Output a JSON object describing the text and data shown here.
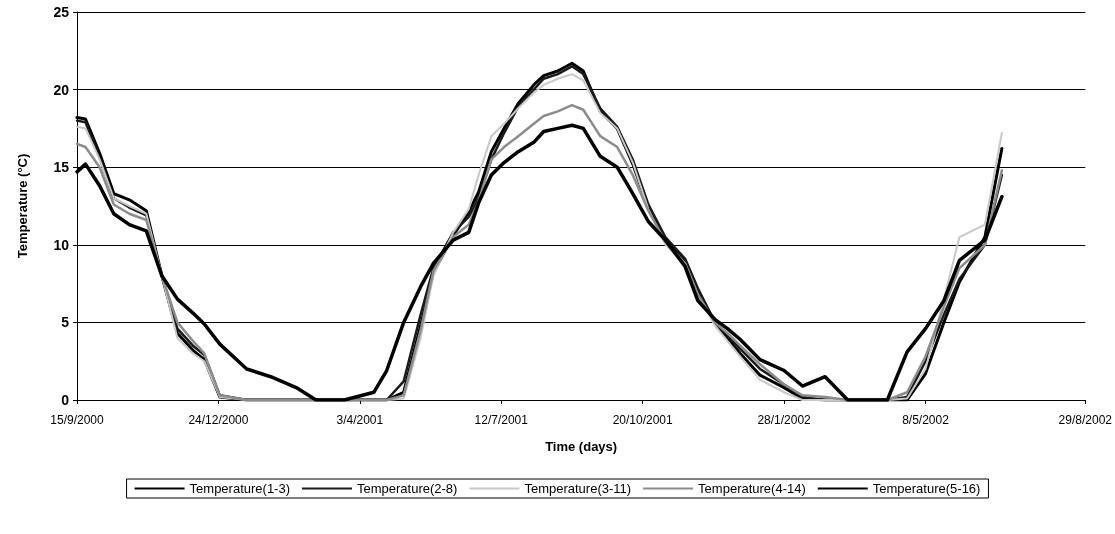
{
  "chart_data": {
    "type": "line",
    "xlabel": "Time (days)",
    "ylabel": "Temperature (°C)",
    "x": [
      "2000-09-15",
      "2000-09-21",
      "2000-10-01",
      "2000-10-11",
      "2000-10-22",
      "2000-11-03",
      "2000-11-14",
      "2000-11-25",
      "2000-12-06",
      "2000-12-14",
      "2000-12-25",
      "2001-01-13",
      "2001-01-30",
      "2001-02-17",
      "2001-03-03",
      "2001-03-23",
      "2001-04-13",
      "2001-04-22",
      "2001-05-04",
      "2001-05-16",
      "2001-05-25",
      "2001-06-08",
      "2001-06-19",
      "2001-06-26",
      "2001-07-05",
      "2001-07-14",
      "2001-07-24",
      "2001-08-04",
      "2001-08-11",
      "2001-08-21",
      "2001-08-31",
      "2001-09-08",
      "2001-09-20",
      "2001-10-02",
      "2001-10-13",
      "2001-10-24",
      "2001-11-05",
      "2001-11-19",
      "2001-11-28",
      "2001-12-10",
      "2001-12-19",
      "2001-12-28",
      "2002-01-11",
      "2002-01-28",
      "2002-02-10",
      "2002-02-26",
      "2002-03-14",
      "2002-04-11",
      "2002-04-25",
      "2002-05-08",
      "2002-05-21",
      "2002-06-01",
      "2002-06-19",
      "2002-07-01"
    ],
    "xlim": [
      "2000-09-15",
      "2002-08-29"
    ],
    "xticks": [
      {
        "value": "2000-09-15",
        "label": "15/9/2000"
      },
      {
        "value": "2000-12-24",
        "label": "24/12/2000"
      },
      {
        "value": "2001-04-03",
        "label": "3/4/2001"
      },
      {
        "value": "2001-07-12",
        "label": "12/7/2001"
      },
      {
        "value": "2001-10-20",
        "label": "20/10/2001"
      },
      {
        "value": "2002-01-28",
        "label": "28/1/2002"
      },
      {
        "value": "2002-05-08",
        "label": "8/5/2002"
      },
      {
        "value": "2002-08-29",
        "label": "29/8/2002"
      }
    ],
    "ylim": [
      0,
      25
    ],
    "yticks": [
      0,
      5,
      10,
      15,
      20,
      25
    ],
    "grid": "y",
    "legend": "bottom",
    "marker": "none",
    "line_style": "solid",
    "series": [
      {
        "name": "Temperature(1-3)",
        "color": "#000000",
        "values": [
          18.2,
          18.1,
          15.9,
          13.3,
          12.9,
          12.2,
          8.0,
          4.3,
          3.2,
          2.6,
          0.2,
          0,
          0,
          0,
          0,
          0,
          0,
          0,
          0.5,
          4.8,
          8.2,
          10.6,
          12.1,
          13.4,
          16.0,
          17.5,
          19.1,
          20.3,
          20.9,
          21.2,
          21.7,
          21.2,
          18.6,
          17.5,
          15.2,
          12.4,
          10.3,
          9.0,
          7.1,
          5.0,
          4.0,
          3.0,
          1.6,
          0.8,
          0.1,
          0,
          0,
          0,
          0,
          1.7,
          5.0,
          7.6,
          10.5,
          16.2
        ]
      },
      {
        "name": "Temperature(2-8)",
        "color": "#1a1a1a",
        "values": [
          18.0,
          17.9,
          15.6,
          13.0,
          12.4,
          11.9,
          8.0,
          4.6,
          3.5,
          2.9,
          0.3,
          0,
          0,
          0,
          0,
          0,
          0,
          0,
          1.2,
          5.5,
          8.5,
          10.8,
          11.8,
          13.0,
          15.5,
          17.2,
          18.9,
          20.0,
          20.7,
          21.0,
          21.5,
          21.0,
          18.8,
          17.6,
          15.5,
          12.6,
          10.5,
          9.1,
          7.2,
          5.0,
          4.2,
          3.3,
          2.0,
          1.0,
          0.2,
          0,
          0,
          0,
          0.2,
          2.5,
          5.5,
          7.8,
          10.0,
          14.5
        ]
      },
      {
        "name": "Temperature(3-11)",
        "color": "#c8c8c8",
        "values": [
          17.6,
          17.5,
          15.5,
          13.0,
          12.5,
          12.0,
          8.0,
          4.0,
          3.0,
          2.5,
          0.2,
          0,
          0,
          0,
          0,
          0,
          0,
          0,
          0.1,
          4.0,
          8.0,
          10.8,
          12.3,
          14.5,
          17.0,
          17.8,
          18.8,
          19.8,
          20.3,
          20.7,
          21.0,
          20.6,
          18.5,
          17.5,
          15.3,
          12.3,
          10.0,
          8.8,
          6.8,
          4.8,
          3.8,
          2.8,
          1.3,
          0.5,
          0,
          0,
          0,
          0,
          0.1,
          2.0,
          6.5,
          10.5,
          11.3,
          17.2
        ]
      },
      {
        "name": "Temperature(4-14)",
        "color": "#8c8c8c",
        "values": [
          16.5,
          16.3,
          15.0,
          12.6,
          12.0,
          11.6,
          8.0,
          5.0,
          3.8,
          3.0,
          0.3,
          0,
          0,
          0,
          0,
          0,
          0,
          0,
          0.3,
          4.5,
          8.3,
          10.5,
          11.3,
          12.8,
          15.5,
          16.3,
          17.0,
          17.8,
          18.3,
          18.6,
          19.0,
          18.7,
          17.0,
          16.3,
          14.5,
          12.2,
          10.2,
          8.8,
          6.8,
          5.0,
          4.3,
          3.5,
          2.3,
          1.0,
          0.3,
          0.2,
          0,
          0,
          0.5,
          2.8,
          6.0,
          8.5,
          10.0,
          14.8
        ]
      },
      {
        "name": "Temperature(5-16)",
        "color": "#000000",
        "values": [
          14.7,
          15.2,
          13.8,
          12.0,
          11.3,
          10.9,
          8.0,
          6.5,
          5.6,
          4.9,
          3.6,
          2.0,
          1.5,
          0.8,
          0,
          0,
          0.5,
          1.9,
          5.0,
          7.3,
          8.8,
          10.3,
          10.8,
          12.7,
          14.5,
          15.3,
          16.0,
          16.6,
          17.3,
          17.5,
          17.7,
          17.5,
          15.7,
          15.0,
          13.3,
          11.5,
          10.3,
          8.6,
          6.4,
          5.2,
          4.6,
          3.9,
          2.6,
          1.9,
          0.9,
          1.5,
          0,
          0,
          3.1,
          4.6,
          6.4,
          9.0,
          10.3,
          13.1
        ]
      }
    ]
  }
}
